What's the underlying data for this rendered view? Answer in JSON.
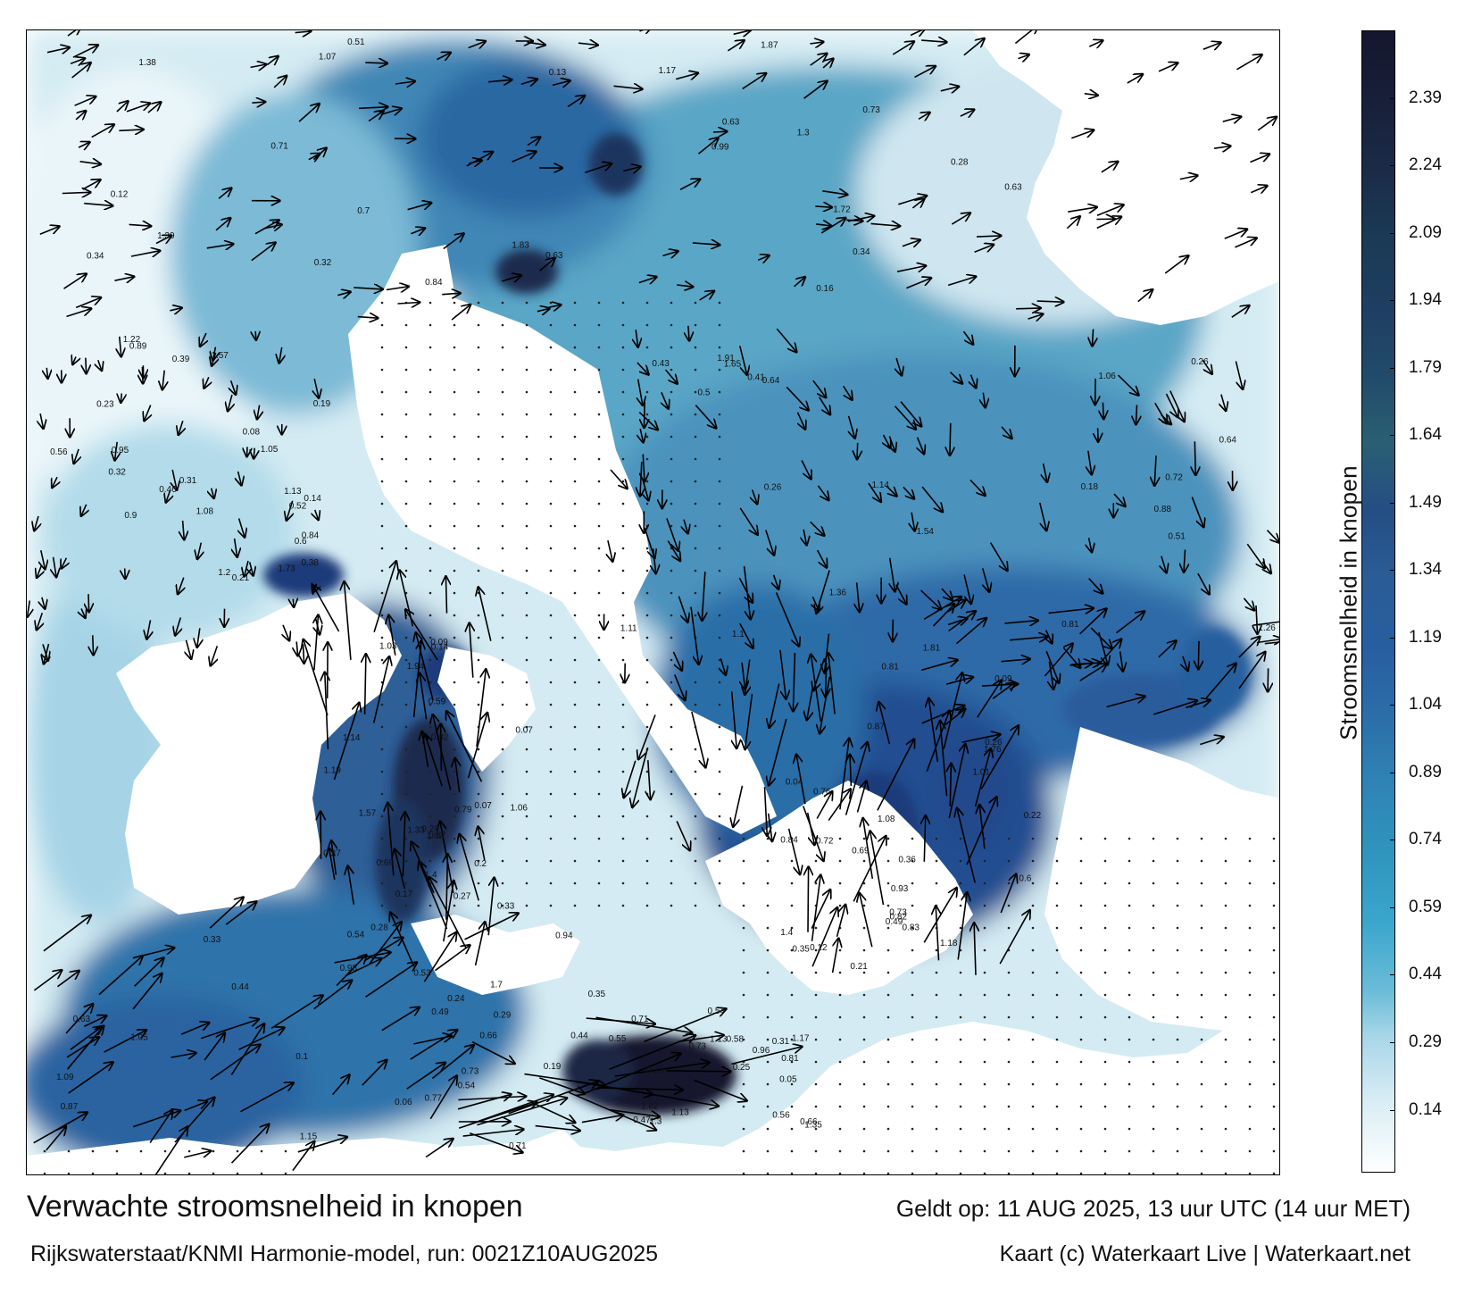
{
  "map": {
    "title": "Verwachte stroomsnelheid in knopen",
    "model_run": "Rijkswaterstaat/KNMI Harmonie-model, run: 0021Z10AUG2025",
    "valid_time": "Geldt op: 11 AUG 2025, 13 uur UTC (14 uur MET)",
    "copyright": "Kaart (c) Waterkaart Live | Waterkaart.net",
    "region": "North Sea / English Channel",
    "land_color": "#ffffff",
    "arrow_color": "#000000"
  },
  "colorbar": {
    "title": "Stroomsnelheid in knopen",
    "ticks": [
      "0.14",
      "0.29",
      "0.44",
      "0.59",
      "0.74",
      "0.89",
      "1.04",
      "1.19",
      "1.34",
      "1.49",
      "1.64",
      "1.79",
      "1.94",
      "2.09",
      "2.24",
      "2.39"
    ],
    "tick_values": [
      0.14,
      0.29,
      0.44,
      0.59,
      0.74,
      0.89,
      1.04,
      1.19,
      1.34,
      1.49,
      1.64,
      1.79,
      1.94,
      2.09,
      2.24,
      2.39
    ],
    "range": [
      0,
      2.54
    ],
    "colors": [
      "#ffffff",
      "#c6e3ee",
      "#8fcbe0",
      "#4aaecd",
      "#2b93bd",
      "#237bad",
      "#265f9e",
      "#234a8c",
      "#1f3a7a",
      "#1c355f",
      "#1a2d4f",
      "#15213c",
      "#14182e"
    ]
  },
  "current_labels": [
    {
      "text": "0.34"
    },
    {
      "text": "0.64"
    },
    {
      "text": "0.84"
    },
    {
      "text": "0.59"
    },
    {
      "text": "0.35"
    },
    {
      "text": "0.33"
    },
    {
      "text": "0.31"
    },
    {
      "text": "0.32"
    },
    {
      "text": "0.26"
    },
    {
      "text": "0.23"
    },
    {
      "text": "0.07"
    },
    {
      "text": "0.04"
    },
    {
      "text": "0.66"
    },
    {
      "text": "0.47"
    },
    {
      "text": "0.34"
    },
    {
      "text": "0.5"
    },
    {
      "text": "0.6"
    },
    {
      "text": "1.03"
    },
    {
      "text": "0.82"
    },
    {
      "text": "0.29"
    },
    {
      "text": "0.19"
    },
    {
      "text": "0.12"
    },
    {
      "text": "0.09"
    },
    {
      "text": "0.08"
    },
    {
      "text": "0.17"
    },
    {
      "text": "0.49"
    },
    {
      "text": "0.54"
    },
    {
      "text": "0.54"
    },
    {
      "text": "0.63"
    },
    {
      "text": "1.26"
    },
    {
      "text": "0.32"
    },
    {
      "text": "0.2"
    },
    {
      "text": "0.21"
    },
    {
      "text": "0.1"
    },
    {
      "text": "0.05"
    },
    {
      "text": "0.16"
    },
    {
      "text": "0.18"
    },
    {
      "text": "0.39"
    },
    {
      "text": "0.33"
    },
    {
      "text": "0.69"
    },
    {
      "text": "0.73"
    },
    {
      "text": "0.96"
    },
    {
      "text": "0.13"
    },
    {
      "text": "0.26"
    },
    {
      "text": "0.14"
    },
    {
      "text": "0.07"
    },
    {
      "text": "0.12"
    },
    {
      "text": "0.28"
    },
    {
      "text": "0.55"
    },
    {
      "text": "1.3"
    },
    {
      "text": "1.1"
    },
    {
      "text": "0.31"
    },
    {
      "text": "0.14"
    },
    {
      "text": "0.22"
    },
    {
      "text": "0.06"
    },
    {
      "text": "0.25"
    },
    {
      "text": "0.51"
    },
    {
      "text": "1.65"
    },
    {
      "text": "0.21"
    },
    {
      "text": "0.09"
    },
    {
      "text": "0.87"
    },
    {
      "text": "0.77"
    },
    {
      "text": "0.66"
    },
    {
      "text": "0.63"
    },
    {
      "text": "0.41"
    },
    {
      "text": "0.38"
    },
    {
      "text": "0.27"
    },
    {
      "text": "0.36"
    },
    {
      "text": "0.24"
    },
    {
      "text": "0.44"
    },
    {
      "text": "0.73"
    },
    {
      "text": "0.88"
    },
    {
      "text": "0.9"
    },
    {
      "text": "0.79"
    },
    {
      "text": "0.73"
    },
    {
      "text": "0.49"
    },
    {
      "text": "0.35"
    },
    {
      "text": "0.28"
    },
    {
      "text": "0.51"
    },
    {
      "text": "0.52"
    },
    {
      "text": "0.27"
    },
    {
      "text": "0.6"
    },
    {
      "text": "0.94"
    },
    {
      "text": "0.81"
    },
    {
      "text": "0.84"
    },
    {
      "text": "0.72"
    },
    {
      "text": "0.56"
    },
    {
      "text": "0.29"
    },
    {
      "text": "0.26"
    },
    {
      "text": "0.44"
    },
    {
      "text": "0.73"
    },
    {
      "text": "0.71"
    },
    {
      "text": "0.64"
    },
    {
      "text": "0.19"
    },
    {
      "text": "1.33"
    },
    {
      "text": "0.84"
    },
    {
      "text": "0.87"
    },
    {
      "text": "0.58"
    },
    {
      "text": "0.63"
    },
    {
      "text": "0.43"
    },
    {
      "text": "0.46"
    },
    {
      "text": "0.67"
    },
    {
      "text": "0.93"
    },
    {
      "text": "0.71"
    },
    {
      "text": "1.17"
    },
    {
      "text": "1.83"
    },
    {
      "text": "1.54"
    },
    {
      "text": "1.08"
    },
    {
      "text": "1.02"
    },
    {
      "text": "0.83"
    },
    {
      "text": "0.53"
    },
    {
      "text": "0.56"
    },
    {
      "text": "1.07"
    },
    {
      "text": "1.06"
    },
    {
      "text": "1.13"
    },
    {
      "text": "1.57"
    },
    {
      "text": "1.4"
    },
    {
      "text": "1.7"
    },
    {
      "text": "1.13"
    },
    {
      "text": "1.72"
    },
    {
      "text": "1.91"
    },
    {
      "text": "1.57"
    },
    {
      "text": "1.4"
    },
    {
      "text": "0.72"
    },
    {
      "text": "0.54"
    },
    {
      "text": "1.82"
    },
    {
      "text": "1.39"
    },
    {
      "text": "0.81"
    },
    {
      "text": "1.73"
    },
    {
      "text": "1.94"
    },
    {
      "text": "1.76"
    },
    {
      "text": "1.05"
    },
    {
      "text": "0.71"
    },
    {
      "text": "0.7"
    },
    {
      "text": "0.81"
    },
    {
      "text": "0.89"
    },
    {
      "text": "0.69"
    },
    {
      "text": "1.01"
    },
    {
      "text": "0.98"
    },
    {
      "text": "1.35"
    },
    {
      "text": "1.87"
    },
    {
      "text": "1.81"
    },
    {
      "text": "1.05"
    },
    {
      "text": "1.06"
    },
    {
      "text": "1.08"
    },
    {
      "text": "1.09"
    },
    {
      "text": "1.13"
    },
    {
      "text": "1.17"
    },
    {
      "text": "1.11"
    },
    {
      "text": "0.95"
    },
    {
      "text": "0.82"
    },
    {
      "text": "0.76"
    },
    {
      "text": "0.63"
    },
    {
      "text": "0.33"
    },
    {
      "text": "0.99"
    },
    {
      "text": "1.14"
    },
    {
      "text": "1.2"
    },
    {
      "text": "1.19"
    },
    {
      "text": "1.18"
    },
    {
      "text": "1.15"
    },
    {
      "text": "1.3"
    },
    {
      "text": "1.38"
    },
    {
      "text": "1.36"
    },
    {
      "text": "1.22"
    },
    {
      "text": "1.14"
    }
  ]
}
